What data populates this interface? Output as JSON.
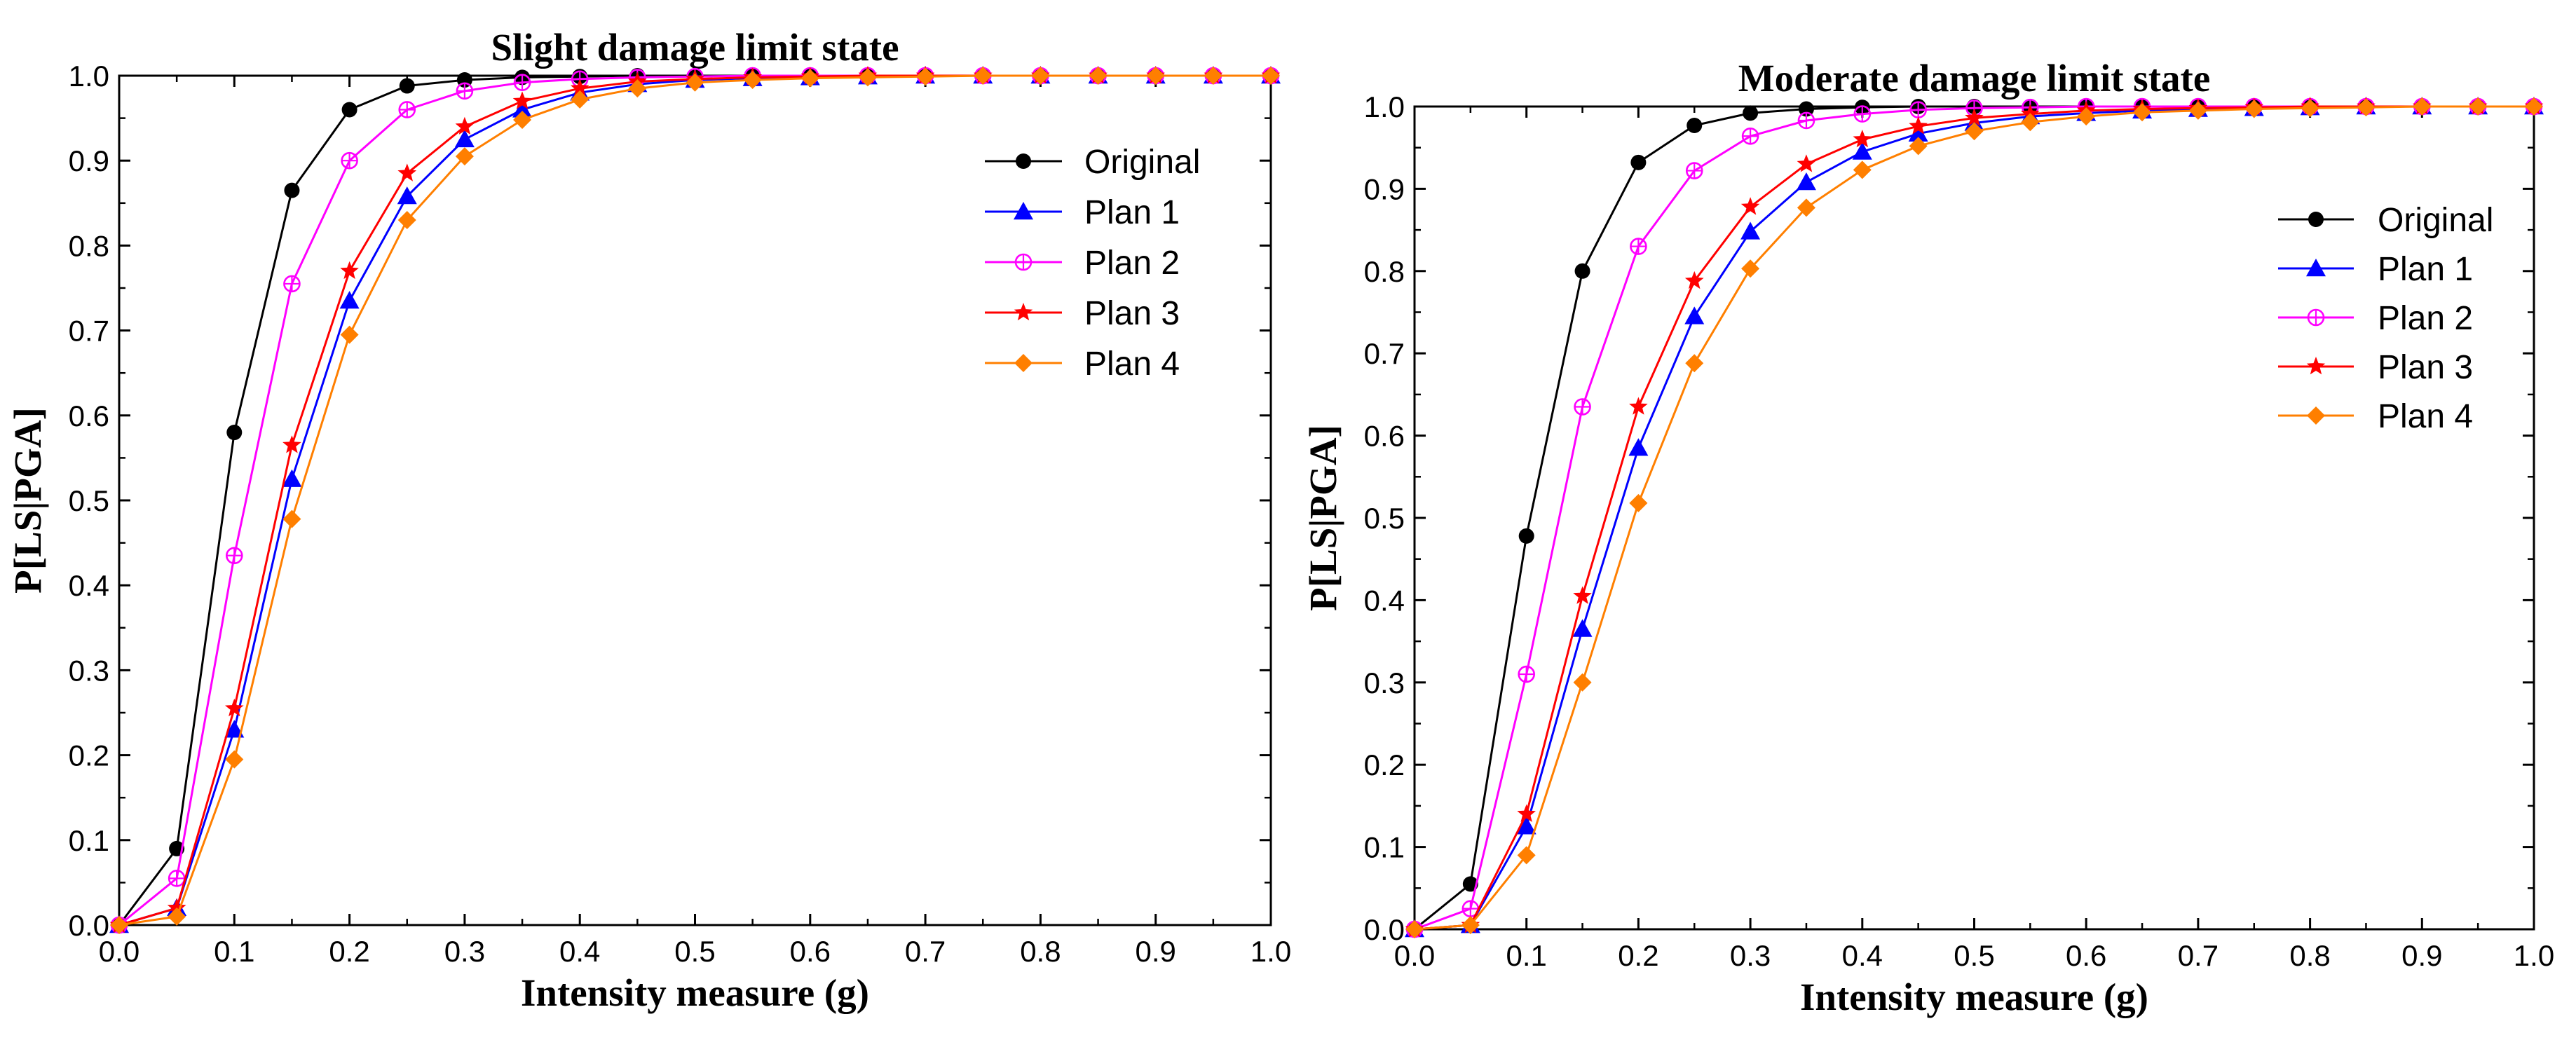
{
  "chart_data": [
    {
      "type": "line",
      "title": "Slight damage limit state",
      "xlabel": "Intensity measure (g)",
      "ylabel": "P[LS|PGA]",
      "xlim": [
        0,
        1
      ],
      "ylim": [
        0,
        1
      ],
      "x_ticks": [
        "0.0",
        "0.1",
        "0.2",
        "0.3",
        "0.4",
        "0.5",
        "0.6",
        "0.7",
        "0.8",
        "0.9",
        "1.0"
      ],
      "y_ticks": [
        "0.0",
        "0.1",
        "0.2",
        "0.3",
        "0.4",
        "0.5",
        "0.6",
        "0.7",
        "0.8",
        "0.9",
        "1.0"
      ],
      "legend_position": "upper-right",
      "x": [
        0,
        0.05,
        0.1,
        0.15,
        0.2,
        0.25,
        0.3,
        0.35,
        0.4,
        0.45,
        0.5,
        0.55,
        0.6,
        0.65,
        0.7,
        0.75,
        0.8,
        0.85,
        0.9,
        0.95,
        1.0
      ],
      "series": [
        {
          "name": "Original",
          "color": "#000000",
          "marker": "circle",
          "values": [
            0,
            0.09,
            0.58,
            0.865,
            0.96,
            0.988,
            0.995,
            0.998,
            0.999,
            1,
            1,
            1,
            1,
            1,
            1,
            1,
            1,
            1,
            1,
            1,
            1
          ]
        },
        {
          "name": "Plan 1",
          "color": "#0000ff",
          "marker": "triangle",
          "values": [
            0,
            0.02,
            0.23,
            0.525,
            0.735,
            0.858,
            0.925,
            0.96,
            0.98,
            0.99,
            0.995,
            0.997,
            0.998,
            0.999,
            1,
            1,
            1,
            1,
            1,
            1,
            1
          ]
        },
        {
          "name": "Plan 2",
          "color": "#ff00ff",
          "marker": "circle-plus",
          "values": [
            0,
            0.055,
            0.435,
            0.755,
            0.9,
            0.96,
            0.982,
            0.992,
            0.996,
            0.998,
            0.999,
            1,
            1,
            1,
            1,
            1,
            1,
            1,
            1,
            1,
            1
          ]
        },
        {
          "name": "Plan 3",
          "color": "#ff0000",
          "marker": "star",
          "values": [
            0,
            0.02,
            0.255,
            0.565,
            0.77,
            0.885,
            0.94,
            0.97,
            0.985,
            0.993,
            0.996,
            0.998,
            0.999,
            1,
            1,
            1,
            1,
            1,
            1,
            1,
            1
          ]
        },
        {
          "name": "Plan 4",
          "color": "#ff7f00",
          "marker": "diamond",
          "values": [
            0,
            0.01,
            0.195,
            0.478,
            0.695,
            0.83,
            0.905,
            0.948,
            0.972,
            0.985,
            0.992,
            0.995,
            0.997,
            0.998,
            0.999,
            1,
            1,
            1,
            1,
            1,
            1
          ]
        }
      ]
    },
    {
      "type": "line",
      "title": "Moderate damage limit state",
      "xlabel": "Intensity measure (g)",
      "ylabel": "P[LS|PGA]",
      "xlim": [
        0,
        1
      ],
      "ylim": [
        0,
        1
      ],
      "x_ticks": [
        "0.0",
        "0.1",
        "0.2",
        "0.3",
        "0.4",
        "0.5",
        "0.6",
        "0.7",
        "0.8",
        "0.9",
        "1.0"
      ],
      "y_ticks": [
        "0.0",
        "0.1",
        "0.2",
        "0.3",
        "0.4",
        "0.5",
        "0.6",
        "0.7",
        "0.8",
        "0.9",
        "1.0"
      ],
      "legend_position": "right",
      "x": [
        0,
        0.05,
        0.1,
        0.15,
        0.2,
        0.25,
        0.3,
        0.35,
        0.4,
        0.45,
        0.5,
        0.55,
        0.6,
        0.65,
        0.7,
        0.75,
        0.8,
        0.85,
        0.9,
        0.95,
        1.0
      ],
      "series": [
        {
          "name": "Original",
          "color": "#000000",
          "marker": "circle",
          "values": [
            0,
            0.055,
            0.478,
            0.8,
            0.932,
            0.977,
            0.992,
            0.997,
            0.999,
            1,
            1,
            1,
            1,
            1,
            1,
            1,
            1,
            1,
            1,
            1,
            1
          ]
        },
        {
          "name": "Plan 1",
          "color": "#0000ff",
          "marker": "triangle",
          "values": [
            0,
            0.005,
            0.125,
            0.365,
            0.585,
            0.745,
            0.848,
            0.908,
            0.945,
            0.967,
            0.98,
            0.988,
            0.992,
            0.995,
            0.997,
            0.998,
            0.999,
            1,
            1,
            1,
            1
          ]
        },
        {
          "name": "Plan 2",
          "color": "#ff00ff",
          "marker": "circle-plus",
          "values": [
            0,
            0.025,
            0.31,
            0.635,
            0.83,
            0.922,
            0.964,
            0.983,
            0.991,
            0.996,
            0.998,
            0.999,
            1,
            1,
            1,
            1,
            1,
            1,
            1,
            1,
            1
          ]
        },
        {
          "name": "Plan 3",
          "color": "#ff0000",
          "marker": "star",
          "values": [
            0,
            0.005,
            0.14,
            0.405,
            0.635,
            0.788,
            0.878,
            0.93,
            0.96,
            0.976,
            0.986,
            0.991,
            0.995,
            0.997,
            0.998,
            0.999,
            1,
            1,
            1,
            1,
            1
          ]
        },
        {
          "name": "Plan 4",
          "color": "#ff7f00",
          "marker": "diamond",
          "values": [
            0,
            0.005,
            0.09,
            0.3,
            0.518,
            0.688,
            0.803,
            0.877,
            0.923,
            0.952,
            0.97,
            0.981,
            0.988,
            0.993,
            0.995,
            0.997,
            0.998,
            0.999,
            1,
            1,
            1
          ]
        }
      ]
    }
  ]
}
